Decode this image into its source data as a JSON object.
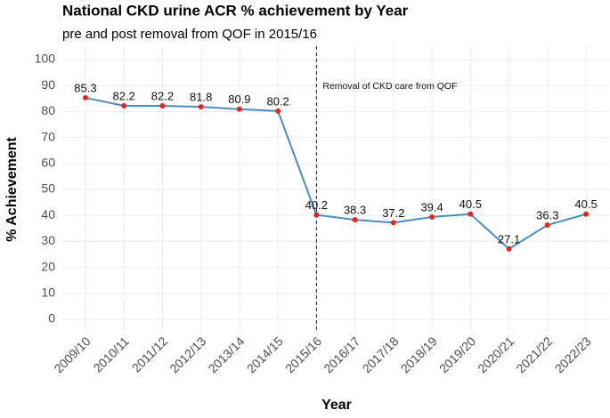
{
  "chart_data": {
    "type": "line",
    "title": "National CKD urine ACR % achievement by Year",
    "subtitle": "pre and post removal from QOF in 2015/16",
    "x_label": "Year",
    "y_label": "% Achievement",
    "categories": [
      "2009/10",
      "2010/11",
      "2011/12",
      "2012/13",
      "2013/14",
      "2014/15",
      "2015/16",
      "2016/17",
      "2017/18",
      "2018/19",
      "2019/20",
      "2020/21",
      "2021/22",
      "2022/23"
    ],
    "values": [
      85.3,
      82.2,
      82.2,
      81.8,
      80.9,
      80.2,
      40.2,
      38.3,
      37.2,
      39.4,
      40.5,
      27.1,
      36.3,
      40.5
    ],
    "line_color": "#4a8cc4",
    "point_color": "#e3261b",
    "ylim": [
      0,
      100
    ],
    "yticks": [
      0,
      10,
      20,
      30,
      40,
      50,
      60,
      70,
      80,
      90,
      100
    ],
    "grid": true,
    "vline": "2015/16",
    "annotation": "Removal of CKD care from QOF"
  }
}
